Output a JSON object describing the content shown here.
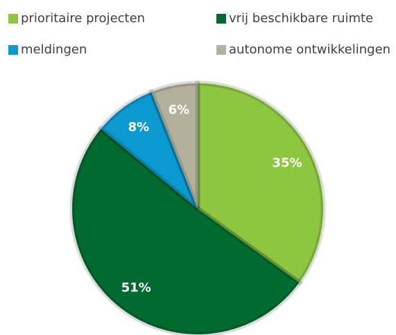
{
  "chart_data": {
    "type": "pie",
    "categories": [
      "prioritaire projecten",
      "vrij beschikbare ruimte",
      "meldingen",
      "autonome ontwikkelingen"
    ],
    "values": [
      35,
      51,
      8,
      6
    ],
    "value_labels": [
      "35%",
      "51%",
      "8%",
      "6%"
    ],
    "colors": [
      "#8dc63f",
      "#006b2e",
      "#0a9ad1",
      "#b3b19b"
    ],
    "legend": "top"
  }
}
